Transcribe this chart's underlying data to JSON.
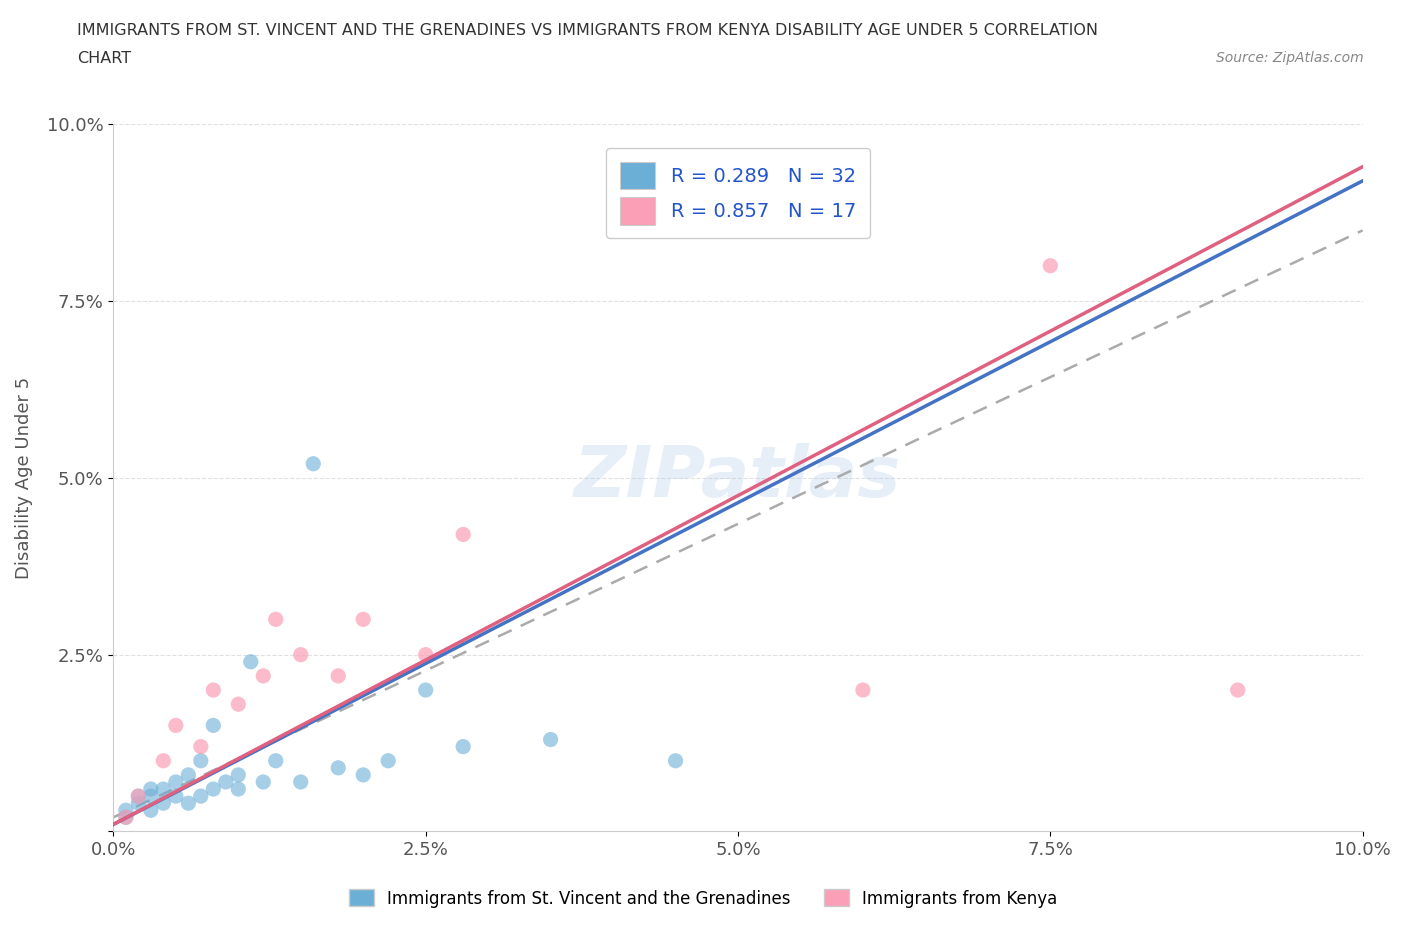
{
  "title_line1": "IMMIGRANTS FROM ST. VINCENT AND THE GRENADINES VS IMMIGRANTS FROM KENYA DISABILITY AGE UNDER 5 CORRELATION",
  "title_line2": "CHART",
  "source_text": "Source: ZipAtlas.com",
  "ylabel": "Disability Age Under 5",
  "xlim": [
    0.0,
    0.1
  ],
  "ylim": [
    0.0,
    0.1
  ],
  "xtick_labels": [
    "0.0%",
    "2.5%",
    "5.0%",
    "7.5%",
    "10.0%"
  ],
  "ytick_labels": [
    "",
    "2.5%",
    "5.0%",
    "7.5%",
    "10.0%"
  ],
  "xtick_vals": [
    0.0,
    0.025,
    0.05,
    0.075,
    0.1
  ],
  "ytick_vals": [
    0.0,
    0.025,
    0.05,
    0.075,
    0.1
  ],
  "legend_r1": "R = 0.289   N = 32",
  "legend_r2": "R = 0.857   N = 17",
  "color_sv": "#6baed6",
  "color_kenya": "#fa9fb5",
  "watermark": "ZIPatlas",
  "sv_scatter_x": [
    0.001,
    0.001,
    0.002,
    0.002,
    0.003,
    0.003,
    0.003,
    0.004,
    0.004,
    0.005,
    0.005,
    0.006,
    0.006,
    0.007,
    0.007,
    0.008,
    0.008,
    0.009,
    0.01,
    0.01,
    0.011,
    0.012,
    0.013,
    0.015,
    0.016,
    0.018,
    0.02,
    0.022,
    0.025,
    0.028,
    0.035,
    0.045
  ],
  "sv_scatter_y": [
    0.002,
    0.003,
    0.004,
    0.005,
    0.003,
    0.005,
    0.006,
    0.004,
    0.006,
    0.005,
    0.007,
    0.004,
    0.008,
    0.005,
    0.01,
    0.006,
    0.015,
    0.007,
    0.006,
    0.008,
    0.024,
    0.007,
    0.01,
    0.007,
    0.052,
    0.009,
    0.008,
    0.01,
    0.02,
    0.012,
    0.013,
    0.01
  ],
  "kenya_scatter_x": [
    0.001,
    0.002,
    0.004,
    0.005,
    0.007,
    0.008,
    0.01,
    0.012,
    0.013,
    0.015,
    0.018,
    0.02,
    0.025,
    0.028,
    0.06,
    0.075,
    0.09
  ],
  "kenya_scatter_y": [
    0.002,
    0.005,
    0.01,
    0.015,
    0.012,
    0.02,
    0.018,
    0.022,
    0.03,
    0.025,
    0.022,
    0.03,
    0.025,
    0.042,
    0.02,
    0.08,
    0.02
  ],
  "sv_line_color": "#4472c4",
  "sv_line_x": [
    0.0,
    0.1
  ],
  "sv_line_y": [
    0.001,
    0.092
  ],
  "kenya_line_color": "#e06080",
  "kenya_line_x": [
    0.0,
    0.1
  ],
  "kenya_line_y": [
    0.001,
    0.094
  ],
  "dashed_line_x": [
    0.0,
    0.1
  ],
  "dashed_line_y": [
    0.002,
    0.085
  ],
  "background_color": "#ffffff",
  "grid_color": "#dddddd",
  "title_color": "#333333",
  "axis_label_color": "#555555",
  "tick_color": "#555555"
}
